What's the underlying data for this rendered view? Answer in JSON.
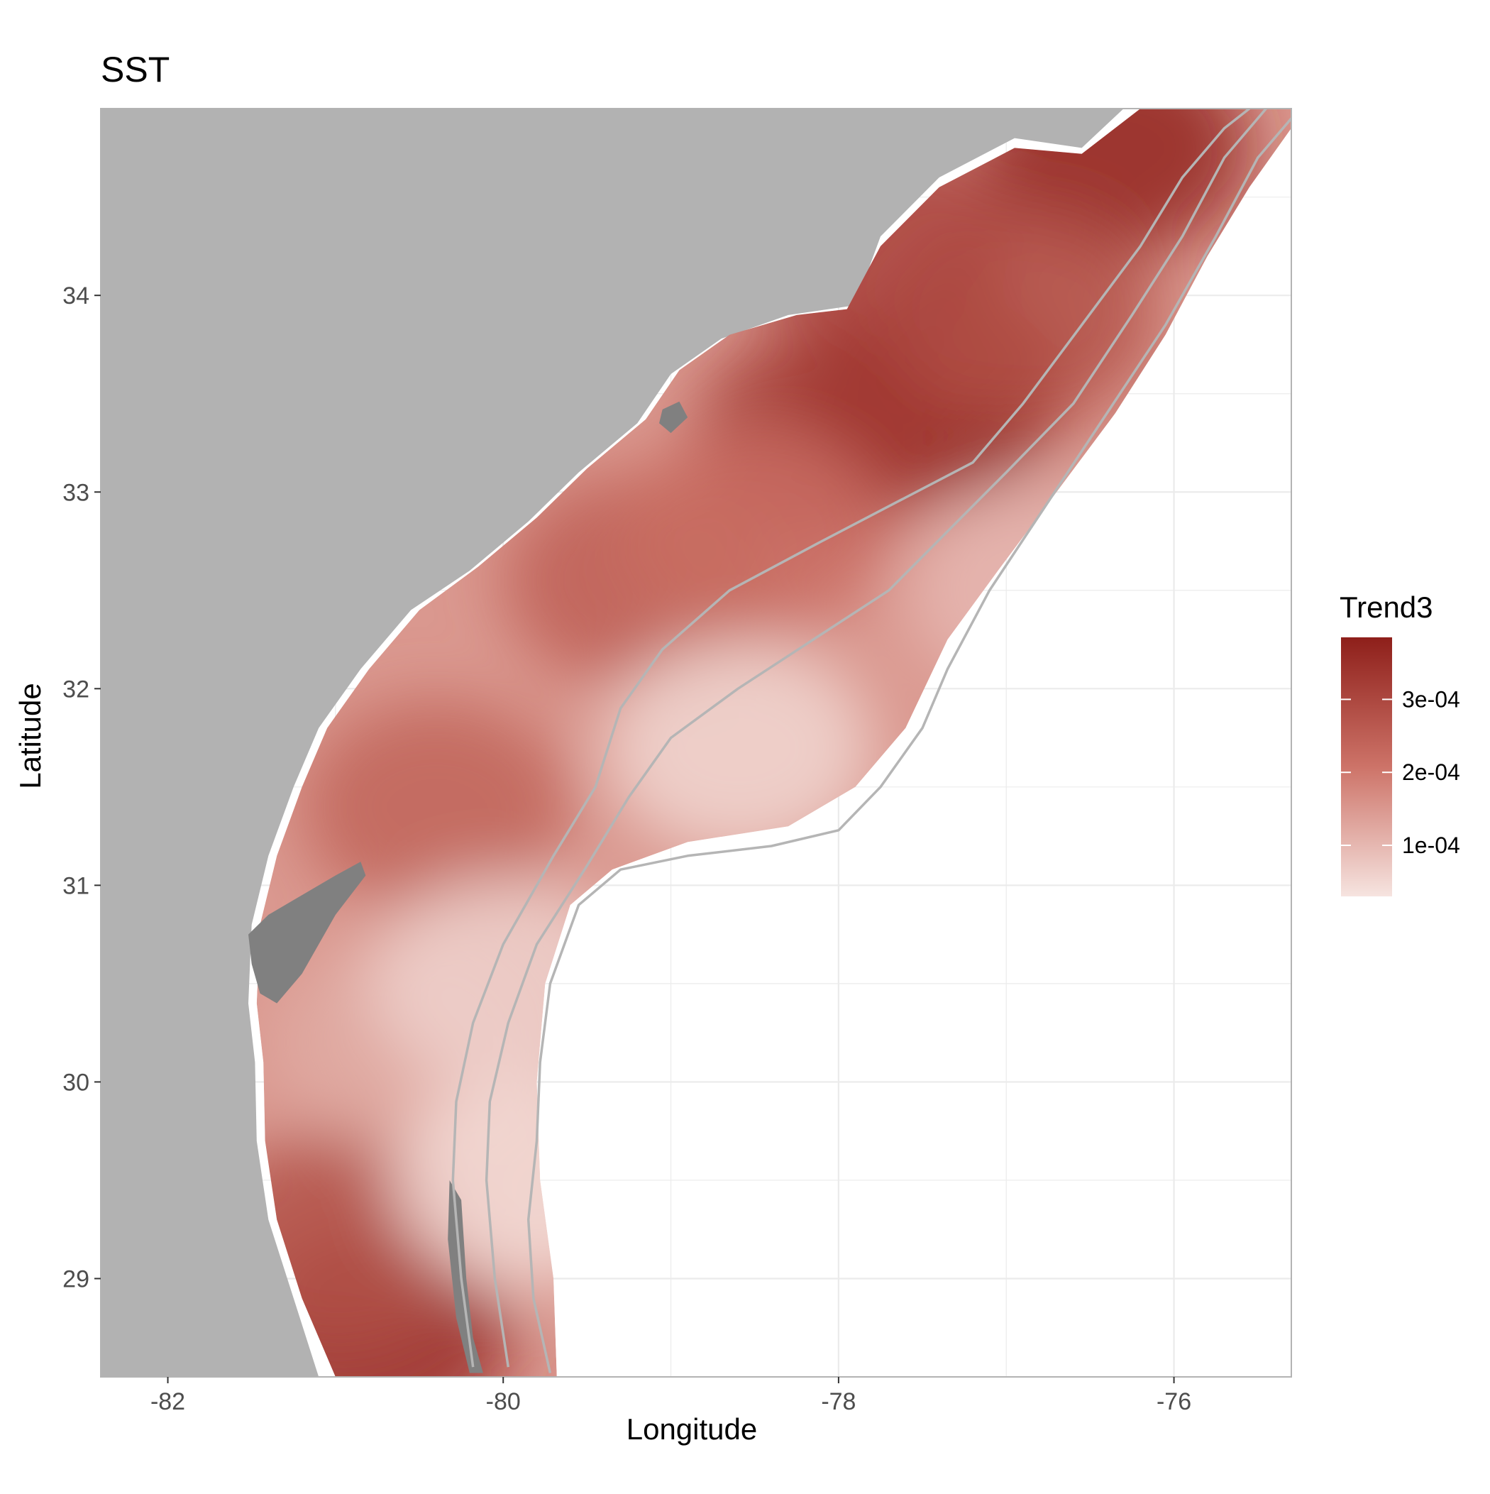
{
  "title": "SST",
  "chart_data": {
    "type": "heatmap",
    "title": "SST",
    "xlabel": "Longitude",
    "ylabel": "Latitude",
    "xlim": [
      -82.4,
      -75.3
    ],
    "ylim": [
      28.5,
      34.95
    ],
    "x_ticks": [
      -82,
      -80,
      -78,
      -76
    ],
    "x_tick_labels": [
      "-82",
      "-80",
      "-78",
      "-76"
    ],
    "y_ticks": [
      29,
      30,
      31,
      32,
      33,
      34
    ],
    "y_tick_labels": [
      "29",
      "30",
      "31",
      "32",
      "33",
      "34"
    ],
    "grid": true,
    "legend": {
      "title": "Trend3",
      "placement": "right",
      "range": [
        3e-05,
        0.000385
      ],
      "breaks": [
        0.0001,
        0.0002,
        0.0003
      ],
      "labels": [
        "1e-04",
        "2e-04",
        "3e-04"
      ],
      "low_color": "#f6e4e0",
      "mid_color": "#cd7368",
      "high_color": "#8e1f1a"
    },
    "colors": {
      "land": "#b2b2b2",
      "masked": "#808080",
      "contour": "#b5b5b5",
      "panel": "#ffffff",
      "grid": "#ebebeb"
    },
    "coastline": [
      [
        -82.4,
        28.5
      ],
      [
        -81.1,
        28.5
      ],
      [
        -81.25,
        28.9
      ],
      [
        -81.4,
        29.3
      ],
      [
        -81.47,
        29.7
      ],
      [
        -81.48,
        30.1
      ],
      [
        -81.52,
        30.4
      ],
      [
        -81.5,
        30.8
      ],
      [
        -81.4,
        31.15
      ],
      [
        -81.25,
        31.5
      ],
      [
        -81.1,
        31.8
      ],
      [
        -80.85,
        32.1
      ],
      [
        -80.55,
        32.4
      ],
      [
        -80.2,
        32.6
      ],
      [
        -79.85,
        32.85
      ],
      [
        -79.55,
        33.1
      ],
      [
        -79.2,
        33.35
      ],
      [
        -79.0,
        33.6
      ],
      [
        -78.7,
        33.78
      ],
      [
        -78.3,
        33.9
      ],
      [
        -77.9,
        33.95
      ],
      [
        -77.75,
        34.3
      ],
      [
        -77.4,
        34.6
      ],
      [
        -76.95,
        34.8
      ],
      [
        -76.55,
        34.75
      ],
      [
        -76.3,
        34.95
      ],
      [
        -82.4,
        34.95
      ]
    ],
    "domain_outline": [
      [
        -81.0,
        28.5
      ],
      [
        -81.2,
        28.9
      ],
      [
        -81.35,
        29.3
      ],
      [
        -81.42,
        29.7
      ],
      [
        -81.43,
        30.1
      ],
      [
        -81.47,
        30.4
      ],
      [
        -81.45,
        30.8
      ],
      [
        -81.35,
        31.15
      ],
      [
        -81.2,
        31.5
      ],
      [
        -81.05,
        31.8
      ],
      [
        -80.8,
        32.1
      ],
      [
        -80.5,
        32.4
      ],
      [
        -80.15,
        32.62
      ],
      [
        -79.8,
        32.87
      ],
      [
        -79.5,
        33.12
      ],
      [
        -79.15,
        33.37
      ],
      [
        -78.95,
        33.62
      ],
      [
        -78.65,
        33.8
      ],
      [
        -78.25,
        33.9
      ],
      [
        -77.95,
        33.93
      ],
      [
        -77.75,
        34.25
      ],
      [
        -77.4,
        34.55
      ],
      [
        -76.95,
        34.75
      ],
      [
        -76.55,
        34.72
      ],
      [
        -76.2,
        34.95
      ],
      [
        -75.3,
        34.95
      ],
      [
        -75.3,
        34.85
      ],
      [
        -75.55,
        34.55
      ],
      [
        -75.8,
        34.2
      ],
      [
        -76.05,
        33.8
      ],
      [
        -76.35,
        33.4
      ],
      [
        -76.7,
        33.0
      ],
      [
        -77.05,
        32.6
      ],
      [
        -77.35,
        32.25
      ],
      [
        -77.6,
        31.8
      ],
      [
        -77.9,
        31.5
      ],
      [
        -78.3,
        31.3
      ],
      [
        -78.9,
        31.22
      ],
      [
        -79.35,
        31.08
      ],
      [
        -79.6,
        30.9
      ],
      [
        -79.75,
        30.5
      ],
      [
        -79.8,
        30.0
      ],
      [
        -79.78,
        29.5
      ],
      [
        -79.7,
        29.0
      ],
      [
        -79.68,
        28.5
      ]
    ],
    "masked_regions": [
      [
        [
          -81.52,
          30.75
        ],
        [
          -81.4,
          30.85
        ],
        [
          -81.0,
          31.05
        ],
        [
          -80.85,
          31.12
        ],
        [
          -80.82,
          31.05
        ],
        [
          -81.0,
          30.85
        ],
        [
          -81.2,
          30.55
        ],
        [
          -81.35,
          30.4
        ],
        [
          -81.45,
          30.45
        ],
        [
          -81.5,
          30.6
        ]
      ],
      [
        [
          -80.32,
          29.5
        ],
        [
          -80.25,
          29.4
        ],
        [
          -80.22,
          29.0
        ],
        [
          -80.18,
          28.7
        ],
        [
          -80.12,
          28.52
        ],
        [
          -80.2,
          28.52
        ],
        [
          -80.28,
          28.8
        ],
        [
          -80.33,
          29.2
        ]
      ],
      [
        [
          -79.05,
          33.42
        ],
        [
          -78.95,
          33.46
        ],
        [
          -78.9,
          33.38
        ],
        [
          -79.0,
          33.3
        ],
        [
          -79.07,
          33.35
        ]
      ]
    ],
    "contours": [
      [
        [
          -80.18,
          28.55
        ],
        [
          -80.25,
          29.0
        ],
        [
          -80.3,
          29.5
        ],
        [
          -80.28,
          29.9
        ],
        [
          -80.18,
          30.3
        ],
        [
          -80.0,
          30.7
        ],
        [
          -79.7,
          31.15
        ],
        [
          -79.45,
          31.5
        ],
        [
          -79.3,
          31.9
        ],
        [
          -79.05,
          32.2
        ],
        [
          -78.65,
          32.5
        ],
        [
          -78.1,
          32.75
        ],
        [
          -77.65,
          32.95
        ],
        [
          -77.2,
          33.15
        ],
        [
          -76.9,
          33.45
        ],
        [
          -76.55,
          33.85
        ],
        [
          -76.2,
          34.25
        ],
        [
          -75.95,
          34.6
        ],
        [
          -75.7,
          34.85
        ],
        [
          -75.55,
          34.95
        ]
      ],
      [
        [
          -79.97,
          28.55
        ],
        [
          -80.05,
          29.0
        ],
        [
          -80.1,
          29.5
        ],
        [
          -80.08,
          29.9
        ],
        [
          -79.97,
          30.3
        ],
        [
          -79.8,
          30.7
        ],
        [
          -79.5,
          31.1
        ],
        [
          -79.25,
          31.45
        ],
        [
          -79.0,
          31.75
        ],
        [
          -78.6,
          32.0
        ],
        [
          -78.15,
          32.25
        ],
        [
          -77.7,
          32.5
        ],
        [
          -77.35,
          32.8
        ],
        [
          -77.0,
          33.1
        ],
        [
          -76.6,
          33.45
        ],
        [
          -76.25,
          33.9
        ],
        [
          -75.95,
          34.3
        ],
        [
          -75.7,
          34.7
        ],
        [
          -75.45,
          34.95
        ]
      ],
      [
        [
          -79.72,
          28.52
        ],
        [
          -79.82,
          28.9
        ],
        [
          -79.85,
          29.3
        ],
        [
          -79.8,
          29.7
        ],
        [
          -79.78,
          30.1
        ],
        [
          -79.72,
          30.5
        ],
        [
          -79.55,
          30.9
        ],
        [
          -79.3,
          31.08
        ],
        [
          -78.9,
          31.15
        ],
        [
          -78.4,
          31.2
        ],
        [
          -78.0,
          31.28
        ],
        [
          -77.75,
          31.5
        ],
        [
          -77.5,
          31.8
        ],
        [
          -77.35,
          32.1
        ],
        [
          -77.1,
          32.5
        ],
        [
          -76.75,
          32.95
        ],
        [
          -76.4,
          33.4
        ],
        [
          -76.05,
          33.85
        ],
        [
          -75.75,
          34.3
        ],
        [
          -75.5,
          34.7
        ],
        [
          -75.3,
          34.9
        ]
      ]
    ],
    "hotspots": [
      {
        "lon": -77.45,
        "lat": 33.5,
        "value": 0.000385
      },
      {
        "lon": -78.05,
        "lat": 33.3,
        "value": 0.00033
      },
      {
        "lon": -76.35,
        "lat": 34.75,
        "value": 0.00037
      },
      {
        "lon": -76.9,
        "lat": 33.9,
        "value": 0.00028
      },
      {
        "lon": -79.2,
        "lat": 32.55,
        "value": 0.00025
      },
      {
        "lon": -80.4,
        "lat": 31.4,
        "value": 0.00024
      },
      {
        "lon": -80.75,
        "lat": 28.7,
        "value": 0.00035
      },
      {
        "lon": -81.0,
        "lat": 29.2,
        "value": 0.00028
      },
      {
        "lon": -78.5,
        "lat": 32.8,
        "value": 0.00022
      },
      {
        "lon": -77.8,
        "lat": 34.3,
        "value": 0.0003
      },
      {
        "lon": -80.6,
        "lat": 30.2,
        "value": 0.00012
      },
      {
        "lon": -78.6,
        "lat": 31.7,
        "value": 5e-05
      },
      {
        "lon": -79.85,
        "lat": 29.5,
        "value": 4e-05
      },
      {
        "lon": -80.0,
        "lat": 30.5,
        "value": 6e-05
      },
      {
        "lon": -76.8,
        "lat": 32.5,
        "value": 0.0001
      }
    ]
  }
}
